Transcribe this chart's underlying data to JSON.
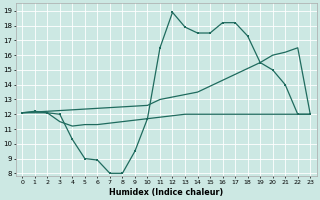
{
  "xlabel": "Humidex (Indice chaleur)",
  "bg_color": "#cce8e3",
  "grid_color": "#b0d8d2",
  "line_color": "#1f6b5e",
  "xlim": [
    -0.5,
    23.5
  ],
  "ylim": [
    7.8,
    19.5
  ],
  "xtick_labels": [
    "0",
    "1",
    "2",
    "3",
    "4",
    "5",
    "6",
    "7",
    "8",
    "9",
    "10",
    "11",
    "12",
    "13",
    "14",
    "15",
    "16",
    "17",
    "18",
    "19",
    "20",
    "21",
    "22",
    "23"
  ],
  "ytick_vals": [
    8,
    9,
    10,
    11,
    12,
    13,
    14,
    15,
    16,
    17,
    18,
    19
  ],
  "series1_x": [
    0,
    1,
    2,
    3,
    4,
    5,
    6,
    7,
    8,
    9,
    10,
    11,
    12,
    13,
    14,
    15,
    16,
    17,
    18,
    19,
    20,
    21,
    22,
    23
  ],
  "series1_y": [
    12.1,
    12.2,
    12.1,
    12.0,
    10.3,
    9.0,
    8.9,
    8.0,
    8.0,
    9.5,
    11.7,
    16.5,
    18.9,
    17.9,
    17.5,
    17.5,
    18.2,
    18.2,
    17.3,
    15.5,
    15.0,
    14.0,
    12.0,
    12.0
  ],
  "series2_x": [
    0,
    10,
    11,
    14,
    19,
    20,
    21,
    22,
    23
  ],
  "series2_y": [
    12.1,
    12.6,
    13.0,
    13.5,
    15.5,
    16.0,
    16.2,
    16.5,
    12.0
  ],
  "series3_x": [
    0,
    1,
    2,
    3,
    4,
    5,
    6,
    7,
    8,
    9,
    10,
    11,
    12,
    13,
    14,
    15,
    16,
    17,
    18,
    19,
    20,
    21,
    22,
    23
  ],
  "series3_y": [
    12.1,
    12.1,
    12.1,
    11.5,
    11.2,
    11.3,
    11.3,
    11.4,
    11.5,
    11.6,
    11.7,
    11.8,
    11.9,
    12.0,
    12.0,
    12.0,
    12.0,
    12.0,
    12.0,
    12.0,
    12.0,
    12.0,
    12.0,
    12.0
  ]
}
